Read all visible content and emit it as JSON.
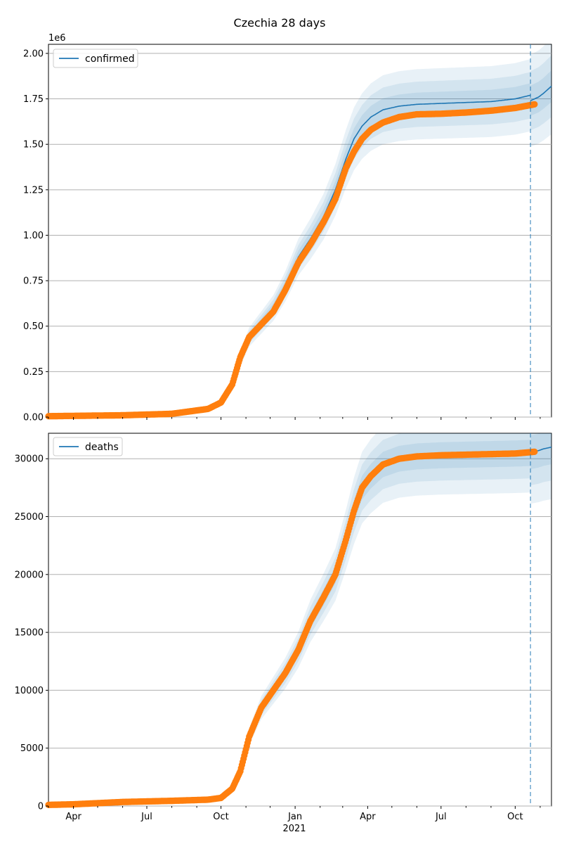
{
  "figure": {
    "title": "Czechia 28 days",
    "colors": {
      "model": "#1f77b4",
      "observed": "#ff7f0e",
      "band": "#1f77b4",
      "grid": "#b0b0b0"
    }
  },
  "chart_data": [
    {
      "type": "line",
      "title": "Czechia 28 days",
      "ylim": [
        0,
        2050000
      ],
      "xlim": [
        "2020-03-01",
        "2021-11-15"
      ],
      "offset_text": "1e6",
      "legend": {
        "position": "top-left",
        "entries": [
          "confirmed"
        ]
      },
      "grid": "y",
      "forecast_start": "2021-10-20",
      "yticks": [
        {
          "value": 0,
          "label": "0.00"
        },
        {
          "value": 250000,
          "label": "0.25"
        },
        {
          "value": 500000,
          "label": "0.50"
        },
        {
          "value": 750000,
          "label": "0.75"
        },
        {
          "value": 1000000,
          "label": "1.00"
        },
        {
          "value": 1250000,
          "label": "1.25"
        },
        {
          "value": 1500000,
          "label": "1.50"
        },
        {
          "value": 1750000,
          "label": "1.75"
        },
        {
          "value": 2000000,
          "label": "2.00"
        }
      ],
      "series": [
        {
          "name": "confirmed",
          "kind": "model",
          "x": [
            "2020-03-01",
            "2020-06-01",
            "2020-08-01",
            "2020-09-15",
            "2020-10-01",
            "2020-10-15",
            "2020-10-25",
            "2020-11-05",
            "2020-11-20",
            "2020-12-05",
            "2020-12-20",
            "2021-01-05",
            "2021-01-20",
            "2021-02-05",
            "2021-02-20",
            "2021-03-05",
            "2021-03-15",
            "2021-03-25",
            "2021-04-05",
            "2021-04-20",
            "2021-05-10",
            "2021-06-01",
            "2021-07-01",
            "2021-08-01",
            "2021-09-01",
            "2021-10-01",
            "2021-10-20"
          ],
          "y": [
            5000,
            12000,
            20000,
            50000,
            80000,
            180000,
            320000,
            440000,
            520000,
            600000,
            720000,
            880000,
            980000,
            1100000,
            1250000,
            1420000,
            1530000,
            1600000,
            1650000,
            1690000,
            1710000,
            1720000,
            1725000,
            1730000,
            1735000,
            1750000,
            1770000
          ]
        },
        {
          "name": "forecast",
          "kind": "forecast",
          "x": [
            "2021-10-20",
            "2021-10-30",
            "2021-11-05",
            "2021-11-15"
          ],
          "y": [
            1740000,
            1760000,
            1780000,
            1820000
          ]
        },
        {
          "name": "observed",
          "kind": "observed",
          "x": [
            "2020-03-01",
            "2020-06-01",
            "2020-08-01",
            "2020-09-15",
            "2020-10-01",
            "2020-10-15",
            "2020-10-25",
            "2020-11-05",
            "2020-11-20",
            "2020-12-05",
            "2020-12-20",
            "2021-01-05",
            "2021-01-20",
            "2021-02-05",
            "2021-02-20",
            "2021-03-05",
            "2021-03-15",
            "2021-03-25",
            "2021-04-05",
            "2021-04-20",
            "2021-05-10",
            "2021-06-01",
            "2021-07-01",
            "2021-08-01",
            "2021-09-01",
            "2021-10-01",
            "2021-10-25"
          ],
          "y": [
            5000,
            10000,
            18000,
            45000,
            80000,
            180000,
            330000,
            440000,
            510000,
            580000,
            700000,
            850000,
            950000,
            1070000,
            1200000,
            1370000,
            1460000,
            1530000,
            1580000,
            1620000,
            1650000,
            1665000,
            1668000,
            1675000,
            1685000,
            1700000,
            1720000
          ]
        }
      ]
    },
    {
      "type": "line",
      "ylim": [
        0,
        32200
      ],
      "xlim": [
        "2020-03-01",
        "2021-11-15"
      ],
      "legend": {
        "position": "top-left",
        "entries": [
          "deaths"
        ]
      },
      "grid": "y",
      "forecast_start": "2021-10-20",
      "xlabel": "2021",
      "yticks": [
        {
          "value": 0,
          "label": "0"
        },
        {
          "value": 5000,
          "label": "5000"
        },
        {
          "value": 10000,
          "label": "10000"
        },
        {
          "value": 15000,
          "label": "15000"
        },
        {
          "value": 20000,
          "label": "20000"
        },
        {
          "value": 25000,
          "label": "25000"
        },
        {
          "value": 30000,
          "label": "30000"
        }
      ],
      "xticks": [
        {
          "value": "2020-04-01",
          "label": "Apr"
        },
        {
          "value": "2020-07-01",
          "label": "Jul"
        },
        {
          "value": "2020-10-01",
          "label": "Oct"
        },
        {
          "value": "2021-01-01",
          "label": "Jan"
        },
        {
          "value": "2021-04-01",
          "label": "Apr"
        },
        {
          "value": "2021-07-01",
          "label": "Jul"
        },
        {
          "value": "2021-10-01",
          "label": "Oct"
        }
      ],
      "series": [
        {
          "name": "deaths",
          "kind": "model",
          "x": [
            "2020-03-01",
            "2020-06-01",
            "2020-08-01",
            "2020-09-15",
            "2020-10-01",
            "2020-10-15",
            "2020-10-25",
            "2020-11-05",
            "2020-11-20",
            "2020-12-05",
            "2020-12-20",
            "2021-01-05",
            "2021-01-20",
            "2021-02-05",
            "2021-02-20",
            "2021-03-05",
            "2021-03-15",
            "2021-03-25",
            "2021-04-05",
            "2021-04-20",
            "2021-05-10",
            "2021-06-01",
            "2021-07-01",
            "2021-08-01",
            "2021-09-01",
            "2021-10-01",
            "2021-10-20"
          ],
          "y": [
            100,
            300,
            400,
            500,
            700,
            1500,
            3000,
            6000,
            8500,
            10000,
            11500,
            13500,
            16000,
            18000,
            20000,
            23000,
            25500,
            27500,
            28500,
            29500,
            30000,
            30200,
            30300,
            30350,
            30400,
            30450,
            30500
          ]
        },
        {
          "name": "forecast",
          "kind": "forecast",
          "x": [
            "2021-10-20",
            "2021-10-30",
            "2021-11-05",
            "2021-11-15"
          ],
          "y": [
            30550,
            30700,
            30850,
            31000
          ]
        },
        {
          "name": "observed",
          "kind": "observed",
          "x": [
            "2020-03-01",
            "2020-04-01",
            "2020-06-01",
            "2020-08-01",
            "2020-09-15",
            "2020-10-01",
            "2020-10-15",
            "2020-10-25",
            "2020-11-05",
            "2020-11-20",
            "2020-12-05",
            "2020-12-20",
            "2021-01-05",
            "2021-01-20",
            "2021-02-05",
            "2021-02-20",
            "2021-03-05",
            "2021-03-15",
            "2021-03-25",
            "2021-04-05",
            "2021-04-20",
            "2021-05-10",
            "2021-06-01",
            "2021-07-01",
            "2021-08-01",
            "2021-09-01",
            "2021-10-01",
            "2021-10-25"
          ],
          "y": [
            100,
            150,
            350,
            450,
            550,
            700,
            1500,
            3000,
            6000,
            8500,
            10000,
            11500,
            13500,
            16000,
            18000,
            20000,
            23000,
            25500,
            27500,
            28500,
            29500,
            30000,
            30200,
            30300,
            30350,
            30400,
            30450,
            30600
          ]
        }
      ]
    }
  ]
}
